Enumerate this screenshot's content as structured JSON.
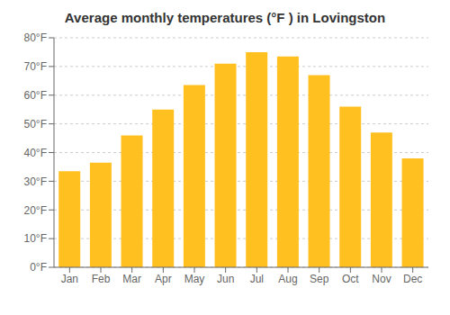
{
  "chart_data": {
    "type": "bar",
    "title": "Average monthly temperatures (°F ) in Lovingston",
    "categories": [
      "Jan",
      "Feb",
      "Mar",
      "Apr",
      "May",
      "Jun",
      "Jul",
      "Aug",
      "Sep",
      "Oct",
      "Nov",
      "Dec"
    ],
    "values": [
      33.5,
      36.5,
      46.0,
      55.0,
      63.5,
      71.0,
      75.0,
      73.5,
      67.0,
      56.0,
      47.0,
      38.0
    ],
    "color": "#FFC020",
    "ylim": [
      0,
      80
    ],
    "yticks": [
      {
        "value": 0,
        "label": "0°F"
      },
      {
        "value": 10,
        "label": "10°F"
      },
      {
        "value": 20,
        "label": "20°F"
      },
      {
        "value": 30,
        "label": "30°F"
      },
      {
        "value": 40,
        "label": "40°F"
      },
      {
        "value": 50,
        "label": "50°F"
      },
      {
        "value": 60,
        "label": "60°F"
      },
      {
        "value": 70,
        "label": "70°F"
      },
      {
        "value": 80,
        "label": "80°F"
      }
    ],
    "grid": true
  }
}
